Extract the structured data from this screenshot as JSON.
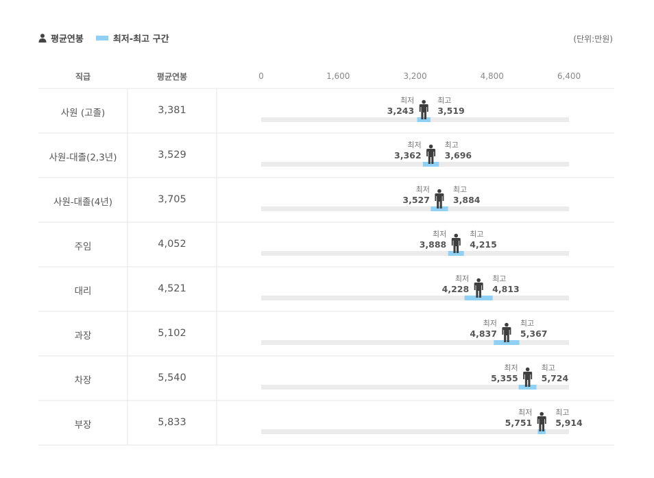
{
  "legend": {
    "avg_label": "평균연봉",
    "range_label": "최저-최고 구간",
    "unit": "(단위:만원)"
  },
  "colors": {
    "range": "#8fd0f4",
    "track": "#ebebeb",
    "person": "#3e3e3e",
    "grid": "#e6e6e6"
  },
  "table": {
    "col_position": "직급",
    "col_salary": "평균연봉"
  },
  "marker_labels": {
    "min": "최저",
    "max": "최고"
  },
  "chart_data": {
    "type": "range-dot",
    "xlim": [
      0,
      6400
    ],
    "ticks": [
      "0",
      "1,600",
      "3,200",
      "4,800",
      "6,400"
    ],
    "tick_values": [
      0,
      1600,
      3200,
      4800,
      6400
    ],
    "categories": [
      "사원 (고졸)",
      "사원-대졸(2,3년)",
      "사원-대졸(4년)",
      "주임",
      "대리",
      "과장",
      "차장",
      "부장"
    ],
    "avg": [
      3381,
      3529,
      3705,
      4052,
      4521,
      5102,
      5540,
      5833
    ],
    "avg_text": [
      "3,381",
      "3,529",
      "3,705",
      "4,052",
      "4,521",
      "5,102",
      "5,540",
      "5,833"
    ],
    "min": [
      3243,
      3362,
      3527,
      3888,
      4228,
      4837,
      5355,
      5751
    ],
    "min_text": [
      "3,243",
      "3,362",
      "3,527",
      "3,888",
      "4,228",
      "4,837",
      "5,355",
      "5,751"
    ],
    "max": [
      3519,
      3696,
      3884,
      4215,
      4813,
      5367,
      5724,
      5914
    ],
    "max_text": [
      "3,519",
      "3,696",
      "3,884",
      "4,215",
      "4,813",
      "5,367",
      "5,724",
      "5,914"
    ]
  }
}
